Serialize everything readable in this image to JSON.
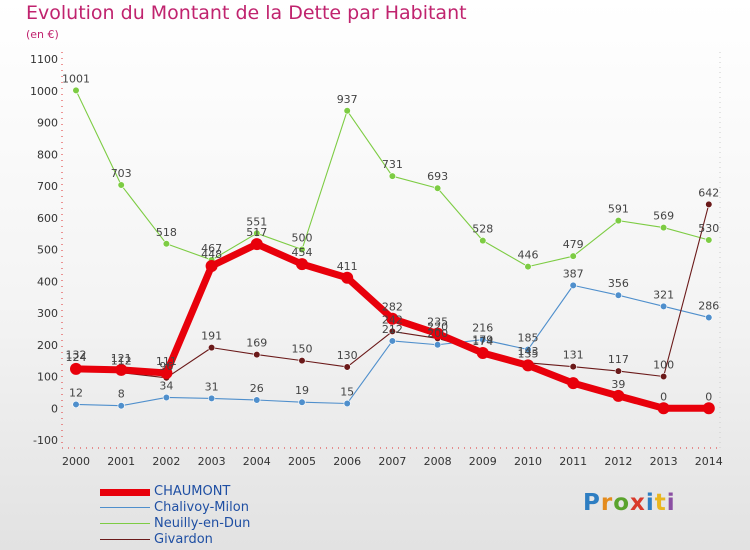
{
  "chart_data": {
    "type": "line",
    "title": "Evolution du Montant de la Dette par Habitant",
    "subtitle": "(en €)",
    "x": [
      "2000",
      "2001",
      "2002",
      "2003",
      "2004",
      "2005",
      "2006",
      "2007",
      "2008",
      "2009",
      "2010",
      "2011",
      "2012",
      "2013",
      "2014"
    ],
    "ylim": [
      -100,
      1100
    ],
    "yticks": [
      -100,
      0,
      100,
      200,
      300,
      400,
      500,
      600,
      700,
      800,
      900,
      1000,
      1100
    ],
    "grid": false,
    "legend_position": "bottom-left",
    "series": [
      {
        "name": "CHAUMONT",
        "color": "#e8000b",
        "values": [
          124,
          121,
          111,
          448,
          517,
          454,
          411,
          282,
          235,
          174,
          135,
          79,
          39,
          0,
          0
        ],
        "labels_shown": [
          true,
          true,
          true,
          true,
          true,
          true,
          true,
          true,
          true,
          true,
          true,
          false,
          true,
          true,
          true
        ]
      },
      {
        "name": "Chalivoy-Milon",
        "color": "#4f8fcc",
        "values": [
          12,
          8,
          34,
          31,
          26,
          19,
          15,
          212,
          200,
          216,
          185,
          387,
          356,
          321,
          286
        ],
        "labels_shown": [
          true,
          true,
          true,
          true,
          true,
          true,
          true,
          true,
          true,
          true,
          true,
          true,
          true,
          true,
          true
        ]
      },
      {
        "name": "Neuilly-en-Dun",
        "color": "#7dcc43",
        "values": [
          1001,
          703,
          518,
          467,
          551,
          500,
          937,
          731,
          693,
          528,
          446,
          479,
          591,
          569,
          530
        ],
        "labels_shown": [
          true,
          true,
          true,
          true,
          true,
          true,
          true,
          true,
          true,
          true,
          true,
          true,
          true,
          true,
          true
        ]
      },
      {
        "name": "Givardon",
        "color": "#6b1a1a",
        "values": [
          132,
          112,
          96,
          191,
          169,
          150,
          130,
          242,
          220,
          179,
          143,
          131,
          117,
          100,
          642
        ],
        "labels_shown": [
          true,
          true,
          true,
          true,
          true,
          true,
          true,
          true,
          true,
          true,
          true,
          true,
          true,
          true,
          true
        ]
      }
    ],
    "legend": [
      "CHAUMONT",
      "Chalivoy-Milon",
      "Neuilly-en-Dun",
      "Givardon"
    ]
  },
  "logo": {
    "letters": [
      "P",
      "r",
      "o",
      "x",
      "i",
      "t",
      "i"
    ]
  }
}
